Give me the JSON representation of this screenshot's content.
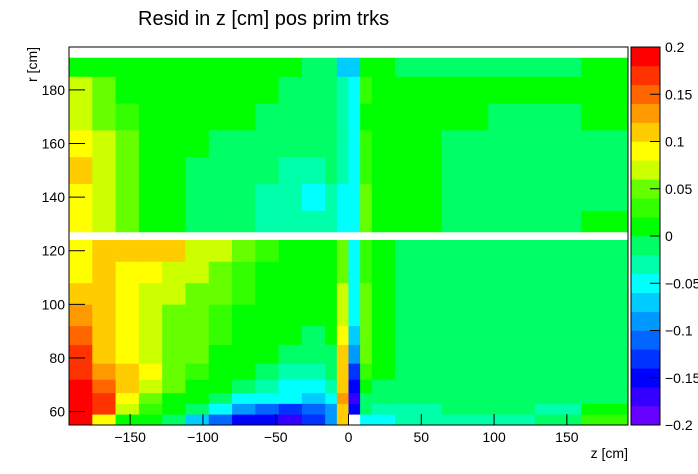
{
  "chart_data": {
    "type": "heatmap",
    "title": "Resid in z [cm] pos prim trks",
    "x_label": "z [cm]",
    "y_label": "r [cm]",
    "xlim": [
      -192,
      192
    ],
    "ylim": [
      55,
      196
    ],
    "xticks": [
      {
        "value": -150,
        "label": "−150"
      },
      {
        "value": -100,
        "label": "−100"
      },
      {
        "value": -50,
        "label": "−50"
      },
      0,
      50,
      100,
      150
    ],
    "yticks": [
      60,
      80,
      100,
      120,
      140,
      160,
      180
    ],
    "zlim": [
      -0.2,
      0.2
    ],
    "zticks": [
      {
        "value": -0.2,
        "label": "−0.2"
      },
      {
        "value": -0.15,
        "label": "−0.15"
      },
      {
        "value": -0.1,
        "label": "−0.1"
      },
      {
        "value": -0.05,
        "label": "−0.05"
      },
      0,
      0.05,
      0.1,
      0.15,
      0.2
    ],
    "palette": [
      "#6600ff",
      "#3300ff",
      "#0000ff",
      "#0033ff",
      "#0066ff",
      "#0099ff",
      "#00ccff",
      "#00ffff",
      "#00ffaa",
      "#00ff66",
      "#00ff00",
      "#33ff00",
      "#66ff00",
      "#ccff00",
      "#ffff00",
      "#ffcc00",
      "#ff9900",
      "#ff6600",
      "#ff3300",
      "#ff0000"
    ],
    "x_edges": [
      -192,
      -176,
      -160,
      -144,
      -128,
      -112,
      -96,
      -80,
      -64,
      -48,
      -32,
      -16,
      -8,
      0,
      8,
      16,
      32,
      64,
      96,
      128,
      160,
      192
    ],
    "y_edges": [
      55,
      59,
      63,
      67,
      72,
      78,
      85,
      92,
      100,
      108,
      116,
      124,
      127,
      135,
      145,
      155,
      165,
      175,
      185,
      192,
      196
    ],
    "values": [
      [
        0.18,
        0.08,
        0.0,
        0.02,
        -0.02,
        -0.08,
        -0.12,
        -0.15,
        -0.16,
        -0.18,
        -0.14,
        -0.1,
        0.12,
        null,
        -0.04,
        -0.04,
        -0.03,
        -0.03,
        -0.03,
        -0.02,
        0.03
      ],
      [
        0.19,
        0.17,
        0.06,
        0.03,
        0.0,
        -0.02,
        -0.06,
        -0.1,
        -0.12,
        -0.13,
        -0.12,
        -0.1,
        0.1,
        -0.15,
        -0.02,
        -0.03,
        -0.03,
        -0.02,
        -0.02,
        -0.03,
        0.0
      ],
      [
        0.19,
        0.17,
        0.08,
        0.05,
        0.02,
        0.0,
        -0.02,
        -0.04,
        -0.05,
        -0.06,
        -0.08,
        -0.06,
        0.13,
        -0.17,
        -0.01,
        -0.02,
        -0.02,
        -0.02,
        -0.02,
        -0.02,
        -0.01
      ],
      [
        0.18,
        0.15,
        0.1,
        0.07,
        0.04,
        0.02,
        0.0,
        -0.02,
        -0.03,
        -0.04,
        -0.05,
        -0.03,
        0.12,
        -0.16,
        0.02,
        -0.01,
        -0.02,
        -0.02,
        -0.02,
        -0.02,
        -0.01
      ],
      [
        0.17,
        0.13,
        0.1,
        0.08,
        0.05,
        0.03,
        0.01,
        0.0,
        -0.02,
        -0.03,
        -0.03,
        -0.02,
        0.1,
        -0.13,
        0.03,
        0.0,
        -0.01,
        -0.02,
        -0.02,
        -0.02,
        -0.01
      ],
      [
        0.16,
        0.11,
        0.09,
        0.07,
        0.05,
        0.04,
        0.02,
        0.01,
        0.0,
        -0.01,
        -0.02,
        -0.01,
        0.1,
        -0.1,
        0.04,
        0.01,
        -0.01,
        -0.02,
        -0.02,
        -0.02,
        -0.02
      ],
      [
        0.15,
        0.12,
        0.09,
        0.07,
        0.05,
        0.04,
        0.03,
        0.02,
        0.01,
        0.0,
        -0.01,
        0.0,
        0.08,
        -0.07,
        0.04,
        0.01,
        -0.01,
        -0.02,
        -0.02,
        -0.02,
        -0.02
      ],
      [
        0.13,
        0.11,
        0.09,
        0.07,
        0.05,
        0.04,
        0.03,
        0.02,
        0.01,
        0.0,
        0.0,
        0.0,
        0.07,
        -0.05,
        0.04,
        0.01,
        -0.01,
        -0.02,
        -0.02,
        -0.02,
        -0.02
      ],
      [
        0.1,
        0.1,
        0.08,
        0.07,
        0.06,
        0.05,
        0.04,
        0.03,
        0.02,
        0.01,
        0.0,
        0.01,
        0.06,
        -0.05,
        0.04,
        0.01,
        -0.01,
        -0.02,
        -0.02,
        -0.02,
        -0.02
      ],
      [
        0.09,
        0.1,
        0.09,
        0.08,
        0.07,
        0.06,
        0.05,
        0.03,
        0.02,
        0.01,
        0.0,
        0.0,
        0.05,
        -0.05,
        0.03,
        0.0,
        -0.01,
        -0.02,
        -0.02,
        -0.02,
        -0.02
      ],
      [
        0.08,
        0.1,
        0.1,
        0.1,
        0.1,
        0.07,
        0.06,
        0.04,
        0.03,
        0.02,
        0.01,
        0.0,
        0.04,
        -0.05,
        0.03,
        0.0,
        -0.01,
        -0.02,
        -0.02,
        -0.02,
        -0.02
      ],
      [
        null,
        null,
        null,
        null,
        null,
        null,
        null,
        null,
        null,
        null,
        null,
        null,
        null,
        null,
        null,
        null,
        null,
        null,
        null,
        null,
        null
      ],
      [
        0.08,
        0.06,
        0.04,
        0.02,
        0.0,
        -0.01,
        -0.02,
        -0.02,
        -0.03,
        -0.03,
        -0.03,
        -0.03,
        -0.04,
        -0.05,
        0.04,
        0.02,
        0.0,
        -0.01,
        -0.01,
        -0.01,
        0.0
      ],
      [
        0.09,
        0.06,
        0.04,
        0.02,
        0.0,
        -0.01,
        -0.02,
        -0.02,
        -0.03,
        -0.03,
        -0.04,
        -0.03,
        -0.04,
        -0.05,
        0.04,
        0.02,
        0.0,
        -0.01,
        -0.01,
        -0.01,
        -0.01
      ],
      [
        0.1,
        0.07,
        0.04,
        0.02,
        0.0,
        -0.01,
        -0.01,
        -0.02,
        -0.02,
        -0.03,
        -0.03,
        -0.02,
        -0.03,
        -0.05,
        0.03,
        0.01,
        0.0,
        -0.01,
        -0.01,
        -0.01,
        -0.01
      ],
      [
        0.09,
        0.06,
        0.04,
        0.02,
        0.01,
        0.0,
        -0.01,
        -0.01,
        -0.02,
        -0.02,
        -0.02,
        -0.02,
        -0.03,
        -0.05,
        0.03,
        0.01,
        0.0,
        -0.01,
        -0.01,
        -0.01,
        -0.01
      ],
      [
        0.07,
        0.05,
        0.03,
        0.02,
        0.01,
        0.01,
        0.0,
        0.0,
        -0.01,
        -0.01,
        -0.02,
        -0.02,
        -0.03,
        -0.05,
        0.02,
        0.01,
        0.0,
        0.0,
        -0.01,
        -0.01,
        0.0
      ],
      [
        0.06,
        0.04,
        0.02,
        0.02,
        0.01,
        0.01,
        0.0,
        0.0,
        0.0,
        -0.01,
        -0.01,
        -0.02,
        -0.03,
        -0.05,
        0.03,
        0.01,
        0.0,
        0.0,
        0.0,
        0.0,
        0.0
      ],
      [
        0.02,
        0.02,
        0.02,
        0.01,
        0.01,
        0.01,
        0.0,
        0.0,
        0.0,
        0.0,
        -0.01,
        -0.02,
        -0.08,
        -0.08,
        0.0,
        0.0,
        -0.01,
        -0.01,
        -0.01,
        -0.01,
        0.0
      ],
      [
        null,
        null,
        null,
        null,
        null,
        null,
        null,
        null,
        null,
        null,
        null,
        null,
        null,
        null,
        null,
        null,
        null,
        null,
        null,
        null,
        null
      ]
    ]
  }
}
